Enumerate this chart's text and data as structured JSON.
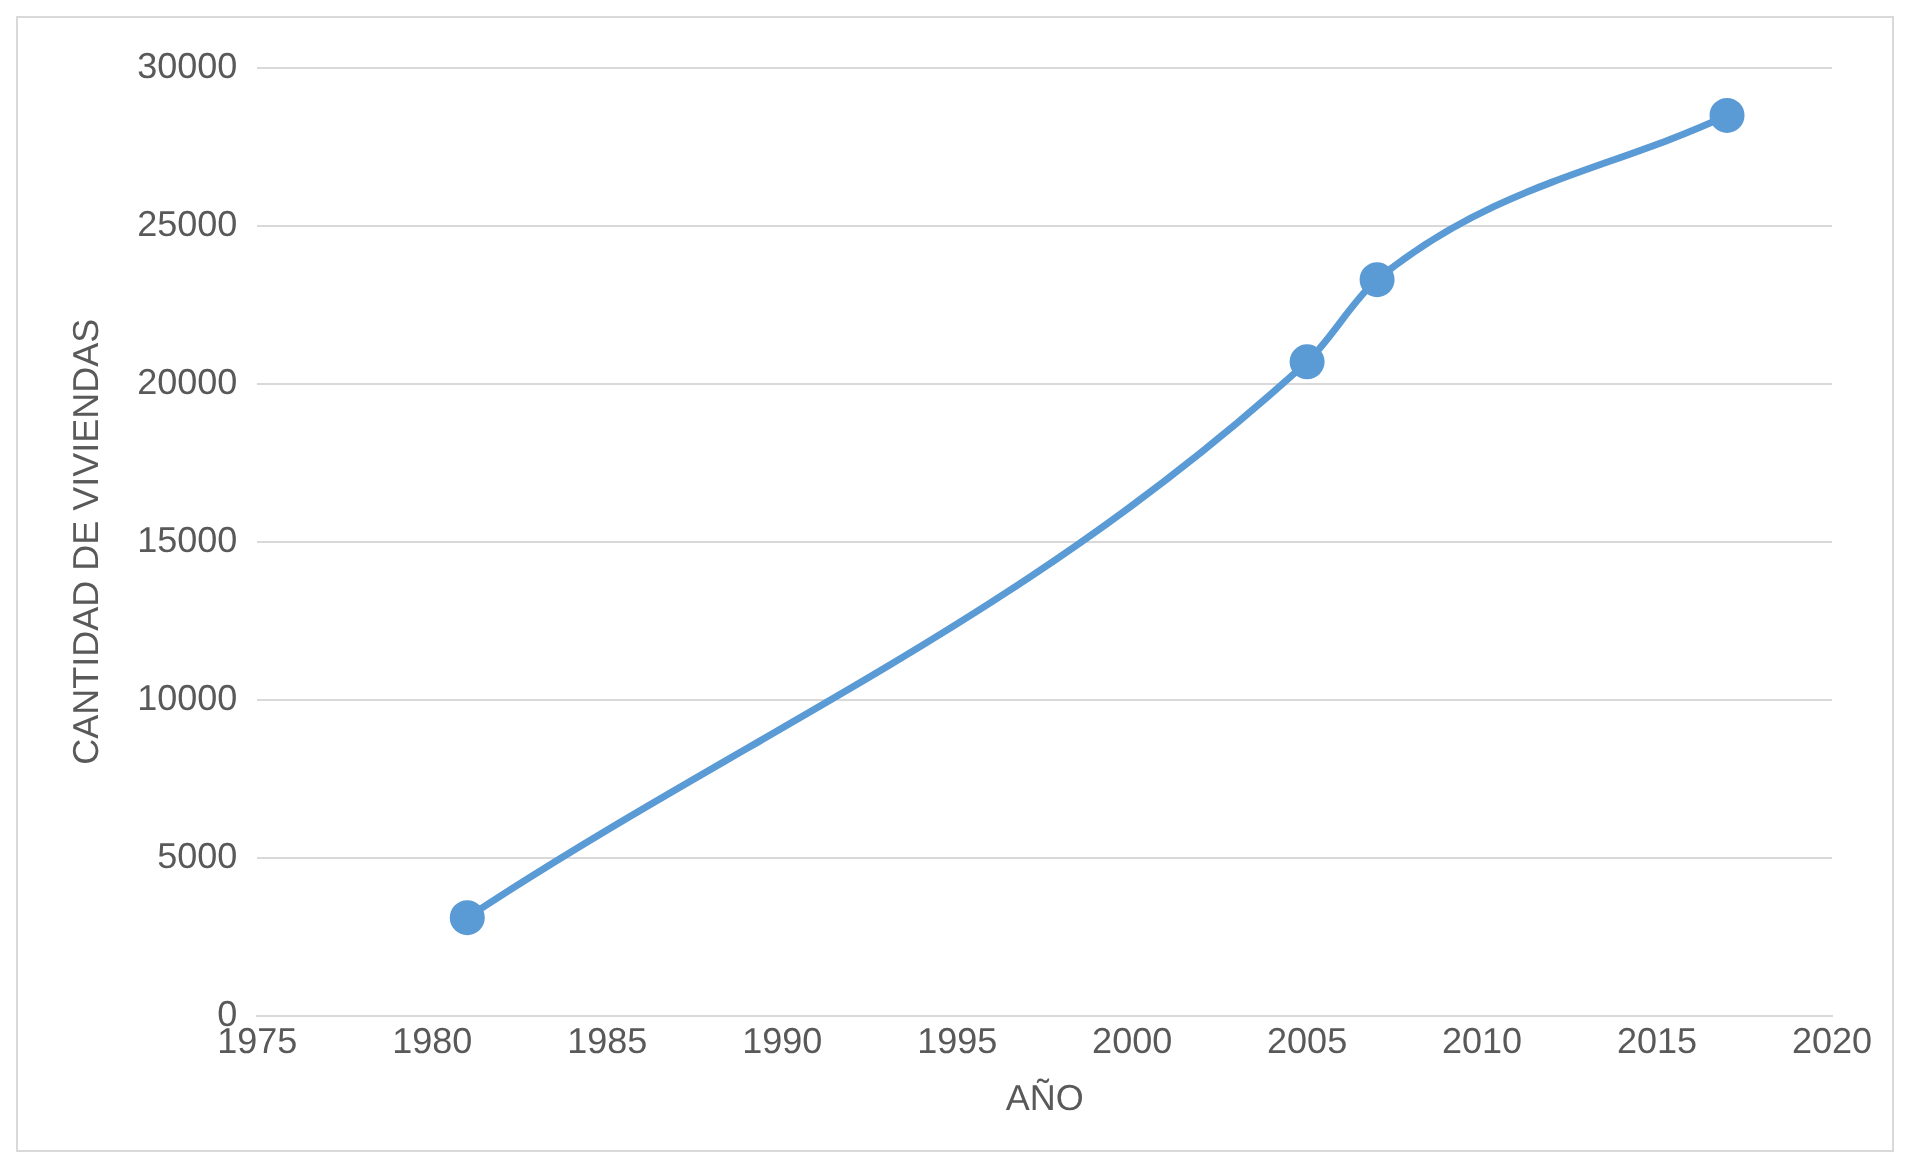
{
  "chart_data": {
    "type": "line",
    "xlabel": "AÑO",
    "ylabel": "CANTIDAD DE VIVIENDAS",
    "x": [
      1981,
      2005,
      2007,
      2017
    ],
    "series": [
      {
        "color": "#5b9bd5",
        "values": [
          3100,
          20700,
          23300,
          28500
        ]
      }
    ],
    "xlim": [
      1975,
      2020
    ],
    "xticks": [
      1975,
      1980,
      1985,
      1990,
      1995,
      2000,
      2005,
      2010,
      2015,
      2020
    ],
    "ylim": [
      0,
      30000
    ],
    "yticks": [
      0,
      5000,
      10000,
      15000,
      20000,
      25000,
      30000
    ],
    "grid": "y",
    "marker": "circle",
    "legend": false
  }
}
